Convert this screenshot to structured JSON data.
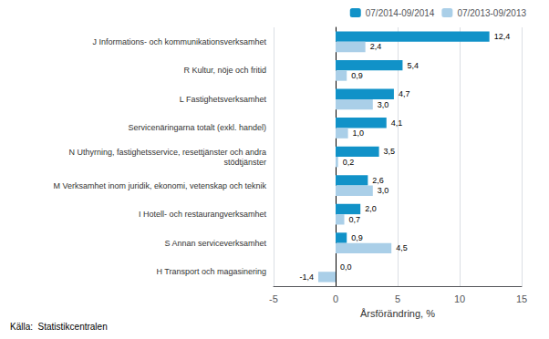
{
  "chart_data": {
    "type": "bar",
    "orientation": "horizontal",
    "categories": [
      "J Informations- och kommunikationsverksamhet",
      "R Kultur, nöje och fritid",
      "L Fastighetsverksamhet",
      "Servicenäringarna totalt (exkl. handel)",
      "N Uthyrning, fastighetsservice, resettjänster och andra\nstödtjänster",
      "M Verksamhet inom juridik, ekonomi, vetenskap och teknik",
      "I Hotell- och restaurangverksamhet",
      "S Annan serviceverksamhet",
      "H Transport och magasinering"
    ],
    "series": [
      {
        "name": "07/2014-09/2014",
        "color": "#1192C8",
        "values": [
          12.4,
          5.4,
          4.7,
          4.1,
          3.5,
          2.6,
          2.0,
          0.9,
          0.0
        ],
        "value_labels": [
          "12,4",
          "5,4",
          "4,7",
          "4,1",
          "3,5",
          "2,6",
          "2,0",
          "0,9",
          "0,0"
        ]
      },
      {
        "name": "07/2013-09/2013",
        "color": "#AACFE8",
        "values": [
          2.4,
          0.9,
          3.0,
          1.0,
          0.2,
          3.0,
          0.7,
          4.5,
          -1.4
        ],
        "value_labels": [
          "2,4",
          "0,9",
          "3,0",
          "1,0",
          "0,2",
          "3,0",
          "0,7",
          "4,5",
          "-1,4"
        ]
      }
    ],
    "xlabel": "Årsförändring, %",
    "xlim": [
      -5,
      15
    ],
    "xticks": [
      -5,
      0,
      5,
      10,
      15
    ],
    "annotations": [
      "Källa:  Statistikcentralen"
    ],
    "data_labels": true,
    "grid": true,
    "legend": "right"
  }
}
